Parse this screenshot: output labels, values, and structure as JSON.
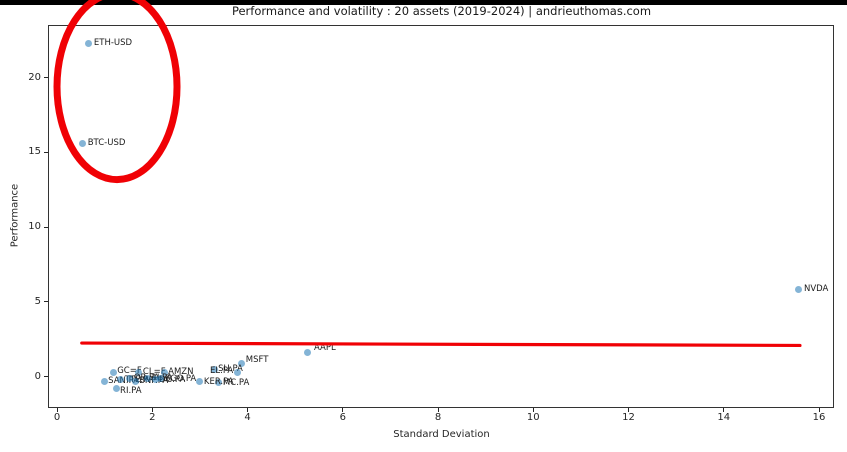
{
  "page": {
    "source_note": "andrieuthomas.com"
  },
  "chart_data": {
    "type": "scatter",
    "title": "Performance and volatility : 20 assets (2019-2024) | andrieuthomas.com",
    "xlabel": "Standard Deviation",
    "ylabel": "Performance",
    "xlim": [
      -0.19,
      16.34
    ],
    "ylim": [
      -2.09,
      23.52
    ],
    "xticks": [
      0,
      2,
      4,
      6,
      8,
      10,
      12,
      14,
      16
    ],
    "yticks": [
      0,
      5,
      10,
      15,
      20
    ],
    "grid": false,
    "legend": false,
    "marker_color": "rgba(31,119,180,0.55)",
    "annotation_color": "#f00105",
    "points": [
      {
        "label": "ETH-USD",
        "x": 0.67,
        "y": 22.31,
        "label_offset": [
          5,
          -12
        ]
      },
      {
        "label": "BTC-USD",
        "x": 0.54,
        "y": 15.6,
        "label_offset": [
          5,
          -12
        ]
      },
      {
        "label": "NVDA",
        "x": 15.58,
        "y": 5.86,
        "label_offset": [
          5,
          -12
        ]
      },
      {
        "label": "AAPL",
        "x": 5.27,
        "y": 1.62,
        "label_offset": [
          6,
          -16
        ]
      },
      {
        "label": "MSFT",
        "x": 3.88,
        "y": 0.85,
        "label_offset": [
          4,
          -16
        ]
      },
      {
        "label": "GC=F",
        "x": 1.18,
        "y": 0.31,
        "label_offset": [
          4,
          -13
        ]
      },
      {
        "label": "CL=F",
        "x": 1.72,
        "y": 0.25,
        "label_offset": [
          4,
          -13
        ]
      },
      {
        "label": "AMZN",
        "x": 2.25,
        "y": 0.25,
        "label_offset": [
          4,
          -13
        ]
      },
      {
        "label": "SU.PA",
        "x": 3.3,
        "y": 0.45,
        "label_offset": [
          4,
          -13
        ]
      },
      {
        "label": "EL.PA",
        "x": 3.78,
        "y": 0.31,
        "label_offset": [
          -27,
          -13
        ]
      },
      {
        "label": "MC.PA",
        "x": 3.4,
        "y": -0.42,
        "label_offset": [
          4,
          -12
        ]
      },
      {
        "label": "RI.PA",
        "x": 1.24,
        "y": -0.82,
        "label_offset": [
          4,
          -10
        ]
      },
      {
        "label": "SAN.PA",
        "x": 0.99,
        "y": -0.29,
        "label_offset": [
          4,
          -12
        ]
      },
      {
        "label": "TTE.PA",
        "x": 1.34,
        "y": -0.22,
        "label_offset": [
          4,
          -12
        ]
      },
      {
        "label": "OR.PA",
        "x": 1.53,
        "y": -0.09,
        "label_offset": [
          4,
          -12
        ]
      },
      {
        "label": "BNP.PA",
        "x": 1.64,
        "y": -0.29,
        "label_offset": [
          4,
          -12
        ]
      },
      {
        "label": "AI.PA",
        "x": 1.89,
        "y": -0.09,
        "label_offset": [
          4,
          -12
        ]
      },
      {
        "label": "DG.PA",
        "x": 2.06,
        "y": -0.22,
        "label_offset": [
          4,
          -12
        ]
      },
      {
        "label": "SGO.PA",
        "x": 2.18,
        "y": -0.15,
        "label_offset": [
          4,
          -12
        ]
      },
      {
        "label": "KER.PA",
        "x": 3.0,
        "y": -0.35,
        "label_offset": [
          4,
          -12
        ]
      }
    ],
    "trend_line": {
      "x1": 0.52,
      "y1": 2.25,
      "x2": 15.6,
      "y2": 2.09
    },
    "highlight_ellipse": {
      "cx": 1.26,
      "cy": 19.4,
      "rx": 1.26,
      "ry": 6.22
    }
  }
}
